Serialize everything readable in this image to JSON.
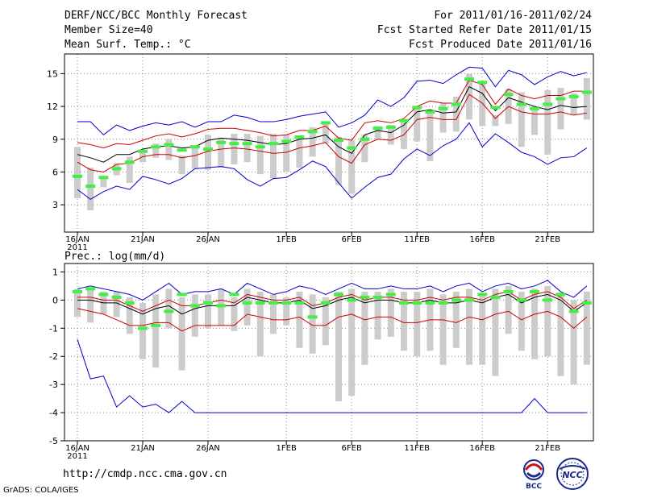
{
  "header": {
    "title": "DERF/NCC/BCC Monthly Forecast",
    "member_size": "Member Size=40",
    "temp_label": "Mean Surf. Temp.: °C",
    "forecast_period": "For 2011/01/16-2011/02/24",
    "started_date": "Fcst Started Refer Date 2011/01/15",
    "produced_date": "Fcst Produced Date 2011/01/16"
  },
  "footer": {
    "url": "http://cmdp.ncc.cma.gov.cn",
    "grads": "GrADS: COLA/IGES"
  },
  "logos": {
    "left": "BCC",
    "right": "NCC"
  },
  "colors": {
    "envelope": "#0000cc",
    "std": "#cc0000",
    "mean": "#000000",
    "obs": "#44ee44",
    "box": "#cccccc"
  },
  "chart_data": [
    {
      "type": "box+line",
      "title": "Mean Surf. Temp.: °C",
      "x_tick_labels": [
        "16JAN",
        "21JAN",
        "26JAN",
        "1FEB",
        "6FEB",
        "11FEB",
        "16FEB",
        "21FEB"
      ],
      "x_tick_day_index": [
        0,
        5,
        10,
        16,
        21,
        26,
        31,
        36
      ],
      "x_sublabel": "2011",
      "y_ticks": [
        3,
        6,
        9,
        12,
        15
      ],
      "ylim": [
        0.5,
        16.8
      ],
      "days": 40,
      "max": [
        10.6,
        10.6,
        9.4,
        10.3,
        9.8,
        10.2,
        10.5,
        10.3,
        10.6,
        10.1,
        10.6,
        10.6,
        11.2,
        11.0,
        10.6,
        10.6,
        10.8,
        11.1,
        11.3,
        11.5,
        10.1,
        10.5,
        11.2,
        12.6,
        12.0,
        12.8,
        14.3,
        14.4,
        14.1,
        14.9,
        15.6,
        15.5,
        13.8,
        15.3,
        14.9,
        14.0,
        14.7,
        15.2,
        14.8,
        15.1
      ],
      "plus_std": [
        8.7,
        8.5,
        8.2,
        8.6,
        8.5,
        8.9,
        9.3,
        9.5,
        9.2,
        9.5,
        9.9,
        10.0,
        10.0,
        9.8,
        9.6,
        9.3,
        9.4,
        9.8,
        9.8,
        10.2,
        9.1,
        8.9,
        10.5,
        10.7,
        10.5,
        10.9,
        12.0,
        12.5,
        12.3,
        12.3,
        14.4,
        14.0,
        12.2,
        13.6,
        13.0,
        12.7,
        13.0,
        13.0,
        13.4,
        13.4
      ],
      "mean": [
        7.6,
        7.3,
        6.9,
        7.6,
        7.6,
        8.1,
        8.3,
        8.4,
        8.2,
        8.3,
        8.9,
        9.1,
        9.0,
        8.9,
        8.7,
        8.5,
        8.6,
        9.0,
        9.1,
        9.4,
        8.3,
        7.7,
        9.4,
        9.8,
        9.6,
        10.3,
        11.5,
        11.7,
        11.4,
        11.5,
        13.8,
        13.2,
        11.6,
        12.8,
        12.4,
        12.0,
        11.7,
        12.1,
        11.9,
        12.0
      ],
      "minus_std": [
        6.9,
        6.2,
        6.0,
        6.7,
        6.8,
        7.4,
        7.6,
        7.6,
        7.3,
        7.5,
        7.9,
        8.1,
        8.2,
        8.1,
        7.9,
        7.7,
        7.8,
        8.2,
        8.4,
        8.7,
        7.4,
        6.8,
        8.5,
        9.0,
        8.9,
        9.4,
        10.8,
        11.0,
        10.8,
        10.8,
        13.1,
        12.3,
        10.9,
        12.0,
        11.5,
        11.3,
        11.3,
        11.5,
        11.2,
        11.4
      ],
      "min": [
        4.4,
        3.5,
        4.2,
        4.7,
        4.4,
        5.6,
        5.3,
        4.9,
        5.4,
        6.3,
        6.4,
        6.5,
        6.3,
        5.3,
        4.7,
        5.4,
        5.5,
        6.2,
        7.0,
        6.5,
        5.0,
        3.6,
        4.6,
        5.5,
        5.8,
        7.2,
        8.1,
        7.5,
        8.4,
        9.0,
        10.5,
        8.3,
        9.5,
        8.7,
        7.8,
        7.4,
        6.7,
        7.3,
        7.4,
        8.2
      ],
      "box_top": [
        8.3,
        6.4,
        5.5,
        6.8,
        7.4,
        8.0,
        8.6,
        9.0,
        7.5,
        8.3,
        9.4,
        9.1,
        9.5,
        9.5,
        9.3,
        9.5,
        9.4,
        9.3,
        10.1,
        10.6,
        9.2,
        8.9,
        9.4,
        10.2,
        10.3,
        10.8,
        12.0,
        11.4,
        12.3,
        12.9,
        15.0,
        14.2,
        11.2,
        13.6,
        13.3,
        12.0,
        13.5,
        13.7,
        13.2,
        14.6
      ],
      "box_bottom": [
        3.6,
        2.5,
        4.6,
        5.7,
        5.0,
        6.9,
        7.3,
        7.1,
        5.8,
        6.3,
        6.2,
        6.4,
        6.7,
        6.9,
        5.8,
        5.4,
        6.0,
        6.4,
        7.4,
        8.6,
        4.8,
        4.0,
        6.9,
        9.0,
        8.5,
        8.1,
        8.8,
        7.0,
        9.6,
        9.7,
        10.8,
        10.2,
        10.2,
        10.4,
        8.3,
        9.4,
        7.6,
        9.9,
        11.2,
        10.8
      ],
      "observed": [
        5.6,
        4.7,
        5.5,
        6.3,
        6.9,
        7.9,
        8.3,
        8.5,
        8.0,
        8.3,
        8.1,
        8.7,
        8.6,
        8.6,
        8.3,
        8.6,
        8.8,
        9.2,
        9.7,
        10.5,
        8.9,
        8.2,
        9.0,
        10.0,
        10.1,
        10.7,
        11.9,
        11.5,
        11.8,
        12.2,
        14.5,
        14.2,
        11.9,
        13.1,
        12.2,
        11.8,
        12.2,
        12.7,
        12.9,
        13.3
      ]
    },
    {
      "type": "box+line",
      "title": "Prec.: log(mm/d)",
      "x_tick_labels": [
        "16JAN",
        "21JAN",
        "26JAN",
        "1FEB",
        "6FEB",
        "11FEB",
        "16FEB",
        "21FEB"
      ],
      "x_tick_day_index": [
        0,
        5,
        10,
        16,
        21,
        26,
        31,
        36
      ],
      "x_sublabel": "2011",
      "y_ticks": [
        -5,
        -4,
        -3,
        -2,
        -1,
        0,
        1
      ],
      "ylim": [
        -5,
        1.3
      ],
      "days": 40,
      "max": [
        0.4,
        0.5,
        0.4,
        0.3,
        0.2,
        0.0,
        0.3,
        0.6,
        0.2,
        0.3,
        0.3,
        0.4,
        0.2,
        0.6,
        0.4,
        0.2,
        0.3,
        0.5,
        0.4,
        0.2,
        0.4,
        0.6,
        0.4,
        0.4,
        0.5,
        0.4,
        0.4,
        0.5,
        0.3,
        0.5,
        0.6,
        0.3,
        0.5,
        0.6,
        0.4,
        0.5,
        0.7,
        0.3,
        0.1,
        0.5
      ],
      "plus_std": [
        0.1,
        0.1,
        0.0,
        0.0,
        -0.2,
        -0.4,
        -0.2,
        0.0,
        -0.2,
        -0.2,
        -0.1,
        0.0,
        -0.1,
        0.2,
        0.1,
        0.0,
        0.0,
        0.1,
        -0.2,
        -0.1,
        0.1,
        0.2,
        0.0,
        0.1,
        0.1,
        0.0,
        0.0,
        0.1,
        0.0,
        0.1,
        0.1,
        0.0,
        0.2,
        0.3,
        0.0,
        0.2,
        0.3,
        0.1,
        -0.3,
        0.0
      ],
      "mean": [
        0.0,
        0.0,
        -0.1,
        -0.1,
        -0.3,
        -0.5,
        -0.3,
        -0.2,
        -0.5,
        -0.3,
        -0.2,
        -0.2,
        -0.2,
        0.1,
        0.0,
        -0.1,
        -0.1,
        0.0,
        -0.3,
        -0.2,
        0.0,
        0.1,
        -0.1,
        0.0,
        0.0,
        -0.1,
        -0.1,
        0.0,
        -0.1,
        -0.1,
        0.0,
        -0.1,
        0.1,
        0.2,
        -0.1,
        0.1,
        0.2,
        0.0,
        -0.4,
        -0.1
      ],
      "minus_std": [
        -0.3,
        -0.4,
        -0.5,
        -0.7,
        -0.9,
        -0.9,
        -0.8,
        -0.8,
        -1.1,
        -0.9,
        -0.9,
        -0.9,
        -0.9,
        -0.5,
        -0.6,
        -0.7,
        -0.7,
        -0.6,
        -0.9,
        -0.9,
        -0.6,
        -0.5,
        -0.7,
        -0.6,
        -0.6,
        -0.8,
        -0.8,
        -0.7,
        -0.7,
        -0.8,
        -0.6,
        -0.7,
        -0.5,
        -0.4,
        -0.7,
        -0.5,
        -0.4,
        -0.6,
        -1.0,
        -0.6
      ],
      "min": [
        -1.4,
        -2.8,
        -2.7,
        -3.8,
        -3.4,
        -3.8,
        -3.7,
        -4.0,
        -3.6,
        -4.0,
        -4.0,
        -4.0,
        -4.0,
        -4.0,
        -4.0,
        -4.0,
        -4.0,
        -4.0,
        -4.0,
        -4.0,
        -4.0,
        -4.0,
        -4.0,
        -4.0,
        -4.0,
        -4.0,
        -4.0,
        -4.0,
        -4.0,
        -4.0,
        -4.0,
        -4.0,
        -4.0,
        -4.0,
        -4.0,
        -3.5,
        -4.0,
        -4.0,
        -4.0,
        -4.0
      ],
      "box_top": [
        0.4,
        0.4,
        0.3,
        0.3,
        0.1,
        -0.1,
        0.2,
        0.4,
        0.1,
        0.2,
        0.2,
        0.4,
        0.1,
        0.4,
        0.3,
        0.2,
        0.1,
        0.3,
        0.2,
        0.1,
        0.3,
        0.4,
        0.3,
        0.3,
        0.4,
        0.3,
        0.3,
        0.4,
        0.2,
        0.3,
        0.4,
        0.2,
        0.4,
        0.5,
        0.3,
        0.4,
        0.5,
        0.2,
        0.0,
        0.3
      ],
      "box_bottom": [
        -0.6,
        -0.8,
        -0.5,
        -0.6,
        -1.2,
        -2.1,
        -2.4,
        -1.0,
        -2.5,
        -1.3,
        -1.0,
        -0.9,
        -1.1,
        -0.9,
        -2.0,
        -1.2,
        -0.9,
        -1.7,
        -1.9,
        -1.6,
        -3.6,
        -3.4,
        -2.3,
        -1.4,
        -1.3,
        -1.8,
        -2.0,
        -1.8,
        -2.3,
        -1.7,
        -2.3,
        -2.3,
        -2.7,
        -1.2,
        -1.8,
        -2.1,
        -2.0,
        -2.7,
        -3.0,
        -2.3
      ],
      "observed": [
        0.3,
        0.4,
        0.2,
        0.1,
        -0.1,
        -1.0,
        -0.9,
        -0.4,
        0.2,
        -0.2,
        -0.1,
        -0.2,
        0.2,
        -0.1,
        -0.1,
        -0.1,
        -0.1,
        -0.1,
        -0.6,
        -0.1,
        0.2,
        0.0,
        0.1,
        0.1,
        0.2,
        -0.1,
        -0.1,
        -0.1,
        -0.1,
        0.0,
        0.0,
        0.2,
        0.1,
        0.3,
        0.0,
        0.3,
        0.0,
        0.2,
        -0.4,
        -0.1
      ]
    }
  ]
}
